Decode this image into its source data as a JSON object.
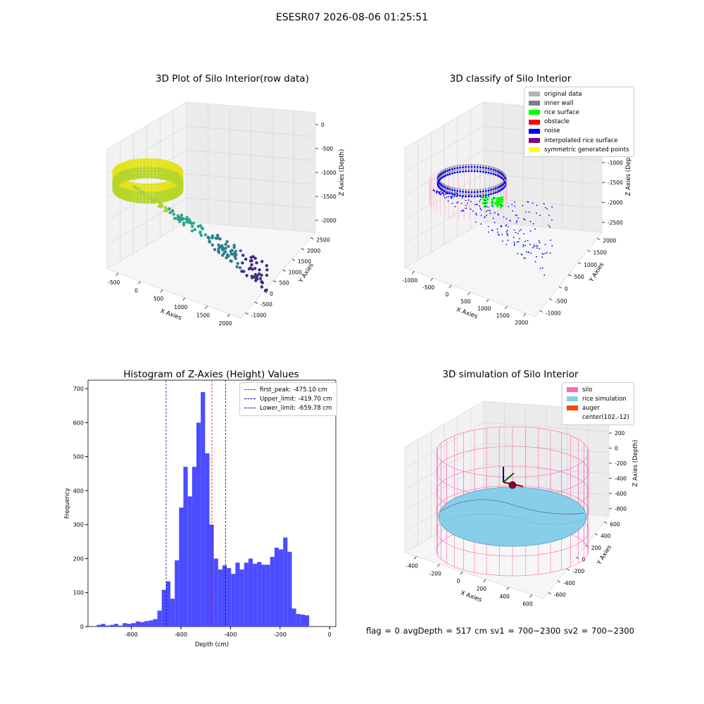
{
  "suptitle": "ESESR07 2026-08-06 01:25:51",
  "footer": "flag = 0     avgDepth = 517 cm  sv1 = 700~2300  sv2 = 700~2300",
  "chart_data": [
    {
      "type": "scatter",
      "title": "3D Plot of Silo Interior(row data)",
      "xlabel": "X Axies",
      "ylabel": "Y Axies",
      "zlabel": "Z Axies (Depth)",
      "x_ticks": [
        "-500",
        "0",
        "500",
        "1000",
        "1500",
        "2000"
      ],
      "y_ticks": [
        "-1000",
        "-500",
        "0",
        "500",
        "1000",
        "1500",
        "2000",
        "2500"
      ],
      "z_ticks": [
        "0",
        "-500",
        "-1000",
        "-1500",
        "-2000"
      ],
      "colors": {
        "high": "#e6e21a",
        "mid": "#2ca58d",
        "low": "#3b2d84"
      }
    },
    {
      "type": "scatter",
      "title": "3D classify of Silo Interior",
      "xlabel": "X Axies",
      "ylabel": "Y Axies",
      "zlabel": "Z Axies (Depth)",
      "x_ticks": [
        "-1000",
        "-500",
        "0",
        "500",
        "1000",
        "1500",
        "2000"
      ],
      "y_ticks": [
        "-1000",
        "-500",
        "0",
        "500",
        "1000",
        "1500",
        "2000"
      ],
      "z_ticks": [
        "0",
        "-500",
        "-1000",
        "-1500",
        "-2000",
        "-2500"
      ],
      "legend": [
        {
          "name": "original data",
          "color": "#b4b4b4"
        },
        {
          "name": "inner wall",
          "color": "#808080"
        },
        {
          "name": "rice surface",
          "color": "#00ff00"
        },
        {
          "name": "obstacle",
          "color": "#ff0000"
        },
        {
          "name": "noise",
          "color": "#0000ff"
        },
        {
          "name": "interpolated rice surface",
          "color": "#800080"
        },
        {
          "name": "symmetric generated points",
          "color": "#ffff00"
        }
      ]
    },
    {
      "type": "bar",
      "title": "Histogram of Z-Axies (Height) Values",
      "xlabel": "Depth (cm)",
      "ylabel": "Frequency",
      "xlim": [
        -975,
        25
      ],
      "ylim": [
        0,
        725
      ],
      "x_ticks": [
        -800,
        -600,
        -400,
        -200,
        0
      ],
      "y_ticks": [
        0,
        100,
        200,
        300,
        400,
        500,
        600,
        700
      ],
      "bar_color": "#4c4cff",
      "bin_width": 17.5,
      "bin_start": -940,
      "values": [
        5,
        8,
        3,
        5,
        8,
        3,
        10,
        8,
        10,
        15,
        13,
        16,
        18,
        22,
        47,
        108,
        133,
        82,
        195,
        350,
        470,
        383,
        470,
        600,
        690,
        510,
        300,
        200,
        168,
        180,
        172,
        155,
        188,
        168,
        188,
        200,
        185,
        190,
        182,
        182,
        205,
        232,
        227,
        262,
        220,
        53,
        37,
        35,
        33
      ],
      "vlines": [
        {
          "label": "first_peak: -475.10 cm",
          "x": -475.1,
          "color": "#ff0000"
        },
        {
          "label": "Upper_limit: -419.70 cm",
          "x": -419.7,
          "color": "#0000cc"
        },
        {
          "label": "Lower_limit: -659.78 cm",
          "x": -659.78,
          "color": "#0000cc"
        }
      ]
    },
    {
      "type": "scatter",
      "title": "3D simulation of Silo Interior",
      "xlabel": "X Axies",
      "ylabel": "Y Axies",
      "zlabel": "Z Axies (Depth)",
      "x_ticks": [
        "-400",
        "-200",
        "0",
        "200",
        "400",
        "600"
      ],
      "y_ticks": [
        "-600",
        "-400",
        "-200",
        "0",
        "200",
        "400",
        "600"
      ],
      "z_ticks": [
        "400",
        "200",
        "0",
        "-200",
        "-400",
        "-600",
        "-800"
      ],
      "legend": [
        {
          "name": "silo",
          "color": "#ff69b4"
        },
        {
          "name": "rice simulation",
          "color": "#87ceeb"
        },
        {
          "name": "auger",
          "color": "#ff4500"
        },
        {
          "name": "center(102,-12)",
          "color": ""
        }
      ]
    }
  ]
}
